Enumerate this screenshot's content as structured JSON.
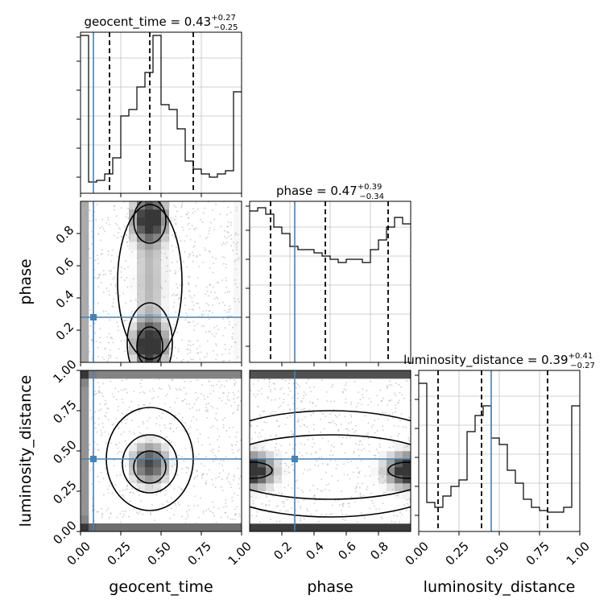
{
  "chart_data": {
    "type": "corner",
    "parameters": [
      "geocent_time",
      "phase",
      "luminosity_distance"
    ],
    "truths": {
      "geocent_time": 0.08,
      "phase": 0.28,
      "luminosity_distance": 0.45
    },
    "titles": [
      {
        "param": "geocent_time",
        "prefix": "geocent_time = 0.43",
        "plus": "+0.27",
        "minus": "−0.25"
      },
      {
        "param": "phase",
        "prefix": "phase = 0.47",
        "plus": "+0.39",
        "minus": "−0.34"
      },
      {
        "param": "luminosity_distance",
        "prefix": "luminosity_distance = 0.39",
        "plus": "+0.41",
        "minus": "−0.27"
      }
    ],
    "axes": {
      "geocent_time": {
        "range": [
          0.0,
          1.0
        ],
        "ticks": [
          0.0,
          0.25,
          0.5,
          0.75,
          1.0
        ],
        "tick_labels": [
          "0.00",
          "0.25",
          "0.50",
          "0.75",
          "1.00"
        ]
      },
      "phase": {
        "range": [
          0.0,
          1.0
        ],
        "ticks": [
          0.2,
          0.4,
          0.6,
          0.8
        ],
        "tick_labels": [
          "0.2",
          "0.4",
          "0.6",
          "0.8"
        ]
      },
      "luminosity_distance": {
        "range": [
          0.0,
          1.0
        ],
        "ticks": [
          0.0,
          0.25,
          0.5,
          0.75,
          1.0
        ],
        "tick_labels": [
          "0.00",
          "0.25",
          "0.50",
          "0.75",
          "1.00"
        ]
      }
    },
    "histograms": [
      {
        "param": "geocent_time",
        "bins": 20,
        "counts": [
          0.98,
          0.07,
          0.08,
          0.12,
          0.22,
          0.48,
          0.52,
          0.66,
          0.75,
          0.98,
          0.55,
          0.52,
          0.4,
          0.2,
          0.15,
          0.12,
          0.1,
          0.12,
          0.14,
          0.63
        ],
        "quantiles": [
          0.18,
          0.43,
          0.7
        ]
      },
      {
        "param": "phase",
        "bins": 20,
        "counts": [
          0.94,
          0.96,
          0.92,
          0.84,
          0.8,
          0.72,
          0.7,
          0.7,
          0.68,
          0.66,
          0.64,
          0.62,
          0.64,
          0.64,
          0.62,
          0.7,
          0.76,
          0.84,
          0.9,
          0.86
        ],
        "quantiles": [
          0.13,
          0.47,
          0.86
        ]
      },
      {
        "param": "luminosity_distance",
        "bins": 20,
        "counts": [
          0.92,
          0.18,
          0.15,
          0.22,
          0.28,
          0.32,
          0.62,
          0.72,
          0.78,
          0.58,
          0.54,
          0.38,
          0.3,
          0.2,
          0.15,
          0.13,
          0.12,
          0.12,
          0.15,
          0.78
        ],
        "quantiles": [
          0.12,
          0.39,
          0.8
        ]
      }
    ],
    "density_panels": [
      {
        "x": "geocent_time",
        "y": "phase"
      },
      {
        "x": "geocent_time",
        "y": "luminosity_distance"
      },
      {
        "x": "phase",
        "y": "luminosity_distance"
      }
    ]
  },
  "colors": {
    "truth": "#4682b4",
    "contour": "#000000",
    "grid": "#c0c0c0"
  }
}
